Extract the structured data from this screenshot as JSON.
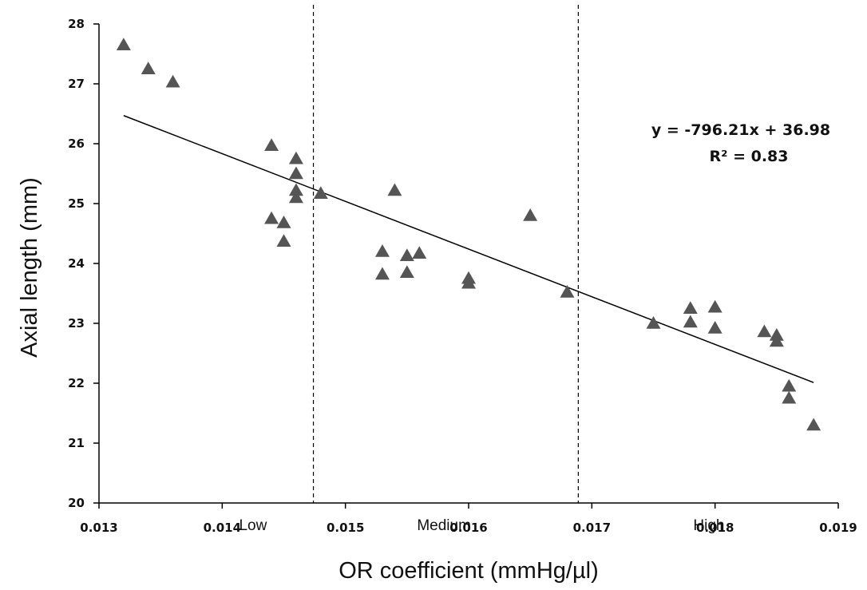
{
  "chart_data": {
    "type": "scatter",
    "xlabel": "OR coefficient (mmHg/µl)",
    "ylabel": "Axial length (mm)",
    "xlim": [
      0.013,
      0.019
    ],
    "ylim": [
      20,
      28
    ],
    "x_ticks": [
      "0.013",
      "0.014",
      "0.015",
      "0.016",
      "0.017",
      "0.018",
      "0.019"
    ],
    "y_ticks": [
      "20",
      "21",
      "22",
      "23",
      "24",
      "25",
      "26",
      "27",
      "28"
    ],
    "marker": "triangle",
    "marker_color": "#555555",
    "grid": false,
    "points": [
      {
        "x": 0.0132,
        "y": 27.65
      },
      {
        "x": 0.0134,
        "y": 27.25
      },
      {
        "x": 0.0136,
        "y": 27.03
      },
      {
        "x": 0.0144,
        "y": 25.97
      },
      {
        "x": 0.0144,
        "y": 24.75
      },
      {
        "x": 0.0145,
        "y": 24.68
      },
      {
        "x": 0.0145,
        "y": 24.37
      },
      {
        "x": 0.0146,
        "y": 25.75
      },
      {
        "x": 0.0146,
        "y": 25.5
      },
      {
        "x": 0.0146,
        "y": 25.22
      },
      {
        "x": 0.0146,
        "y": 25.1
      },
      {
        "x": 0.0148,
        "y": 25.17
      },
      {
        "x": 0.0153,
        "y": 24.2
      },
      {
        "x": 0.0153,
        "y": 23.82
      },
      {
        "x": 0.0154,
        "y": 25.22
      },
      {
        "x": 0.0155,
        "y": 24.13
      },
      {
        "x": 0.0155,
        "y": 23.85
      },
      {
        "x": 0.0156,
        "y": 24.17
      },
      {
        "x": 0.016,
        "y": 23.75
      },
      {
        "x": 0.016,
        "y": 23.67
      },
      {
        "x": 0.0165,
        "y": 24.8
      },
      {
        "x": 0.0168,
        "y": 23.52
      },
      {
        "x": 0.0175,
        "y": 23.0
      },
      {
        "x": 0.0178,
        "y": 23.25
      },
      {
        "x": 0.0178,
        "y": 23.02
      },
      {
        "x": 0.018,
        "y": 23.27
      },
      {
        "x": 0.018,
        "y": 22.92
      },
      {
        "x": 0.0184,
        "y": 22.86
      },
      {
        "x": 0.0185,
        "y": 22.8
      },
      {
        "x": 0.0185,
        "y": 22.7
      },
      {
        "x": 0.0186,
        "y": 21.95
      },
      {
        "x": 0.0186,
        "y": 21.75
      },
      {
        "x": 0.0188,
        "y": 21.3
      }
    ],
    "trendline": {
      "slope": -796.21,
      "intercept": 36.98,
      "x_start": 0.0132,
      "x_end": 0.0188
    },
    "dividers": [
      0.01474,
      0.01689
    ],
    "categories": [
      {
        "label": "Low",
        "x": 0.01425
      },
      {
        "label": "Medium",
        "x": 0.0158
      },
      {
        "label": "High",
        "x": 0.01795
      }
    ],
    "annotations": {
      "equation": "y = -796.21x + 36.98",
      "r_squared": "R² = 0.83"
    }
  }
}
